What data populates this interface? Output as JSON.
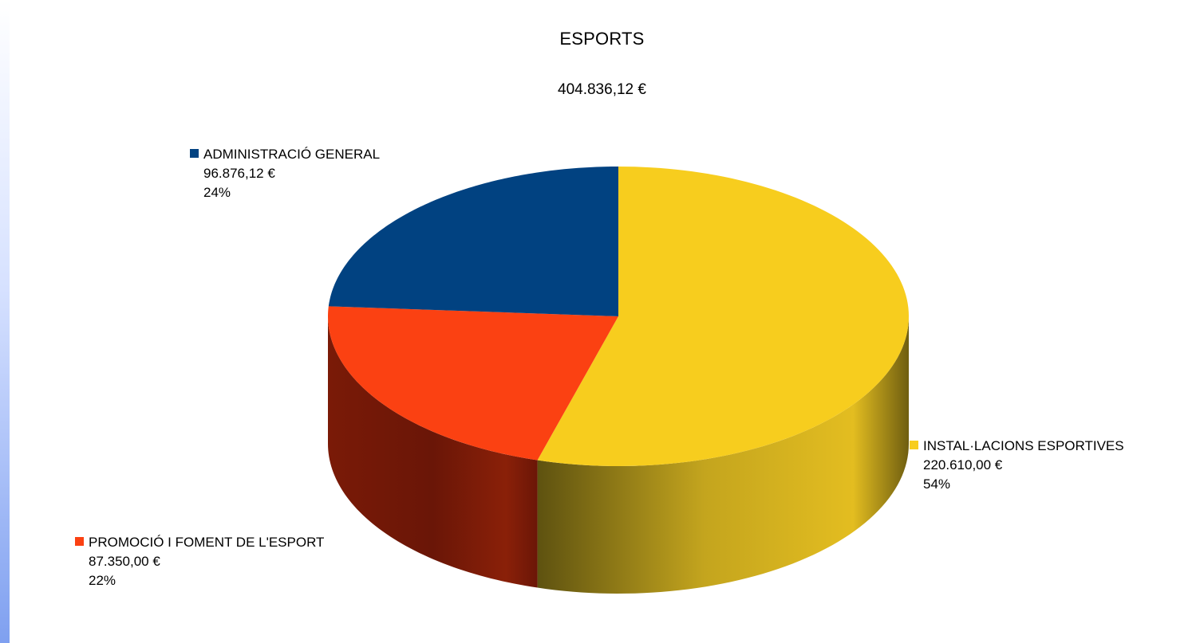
{
  "chart_data": {
    "type": "pie",
    "title": "ESPORTS",
    "subtitle": "404.836,12 €",
    "style": "3d",
    "slices": [
      {
        "name": "INSTAL·LACIONS ESPORTIVES",
        "value": 220610.0,
        "value_label": "220.610,00 €",
        "percent_label": "54%",
        "color": "#F7CD1E"
      },
      {
        "name": "PROMOCIÓ I FOMENT DE L'ESPORT",
        "value": 87350.0,
        "value_label": "87.350,00 €",
        "percent_label": "22%",
        "color": "#FB4112"
      },
      {
        "name": "ADMINISTRACIÓ GENERAL",
        "value": 96876.12,
        "value_label": "96.876,12 €",
        "percent_label": "24%",
        "color": "#014281"
      }
    ]
  }
}
